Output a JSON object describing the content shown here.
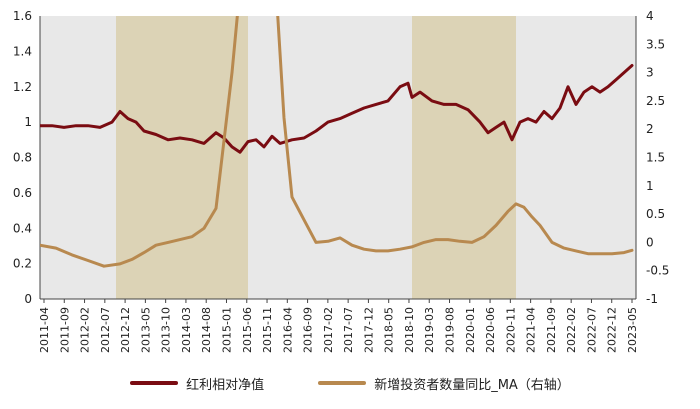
{
  "chart_data": {
    "type": "line",
    "x_ticks": [
      "2011-04",
      "2011-09",
      "2012-02",
      "2012-07",
      "2012-12",
      "2013-05",
      "2013-10",
      "2014-03",
      "2014-08",
      "2015-01",
      "2015-06",
      "2015-11",
      "2016-04",
      "2016-09",
      "2017-02",
      "2017-07",
      "2017-12",
      "2018-05",
      "2018-10",
      "2019-03",
      "2019-08",
      "2020-01",
      "2020-06",
      "2020-11",
      "2021-04",
      "2021-09",
      "2022-02",
      "2022-07",
      "2022-12",
      "2023-05"
    ],
    "y_left": {
      "ticks": [
        "0",
        "0.2",
        "0.4",
        "0.6",
        "0.8",
        "1",
        "1.2",
        "1.4",
        "1.6"
      ],
      "min": 0,
      "max": 1.6
    },
    "y_right": {
      "ticks": [
        "-1",
        "-0.5",
        "0",
        "0.5",
        "1",
        "1.5",
        "2",
        "2.5",
        "3",
        "3.5",
        "4"
      ],
      "min": -1,
      "max": 4
    },
    "shaded_regions": [
      {
        "start": "2012-11",
        "end": "2015-08"
      },
      {
        "start": "2019-01",
        "end": "2021-03"
      }
    ],
    "series": [
      {
        "name": "红利相对净值",
        "axis": "left",
        "color": "#7a0c12",
        "points": [
          [
            "2011-04",
            0.98
          ],
          [
            "2011-07",
            0.98
          ],
          [
            "2011-10",
            0.97
          ],
          [
            "2012-01",
            0.98
          ],
          [
            "2012-04",
            0.98
          ],
          [
            "2012-07",
            0.97
          ],
          [
            "2012-10",
            1.0
          ],
          [
            "2012-12",
            1.06
          ],
          [
            "2013-02",
            1.02
          ],
          [
            "2013-04",
            1.0
          ],
          [
            "2013-06",
            0.95
          ],
          [
            "2013-09",
            0.93
          ],
          [
            "2013-12",
            0.9
          ],
          [
            "2014-03",
            0.91
          ],
          [
            "2014-06",
            0.9
          ],
          [
            "2014-09",
            0.88
          ],
          [
            "2014-12",
            0.94
          ],
          [
            "2015-02",
            0.91
          ],
          [
            "2015-04",
            0.86
          ],
          [
            "2015-06",
            0.83
          ],
          [
            "2015-08",
            0.89
          ],
          [
            "2015-10",
            0.9
          ],
          [
            "2015-12",
            0.86
          ],
          [
            "2016-02",
            0.92
          ],
          [
            "2016-04",
            0.88
          ],
          [
            "2016-07",
            0.9
          ],
          [
            "2016-10",
            0.91
          ],
          [
            "2017-01",
            0.95
          ],
          [
            "2017-04",
            1.0
          ],
          [
            "2017-07",
            1.02
          ],
          [
            "2017-10",
            1.05
          ],
          [
            "2018-01",
            1.08
          ],
          [
            "2018-04",
            1.1
          ],
          [
            "2018-07",
            1.12
          ],
          [
            "2018-10",
            1.2
          ],
          [
            "2018-12",
            1.22
          ],
          [
            "2019-01",
            1.14
          ],
          [
            "2019-03",
            1.17
          ],
          [
            "2019-06",
            1.12
          ],
          [
            "2019-09",
            1.1
          ],
          [
            "2019-12",
            1.1
          ],
          [
            "2020-03",
            1.07
          ],
          [
            "2020-06",
            1.0
          ],
          [
            "2020-08",
            0.94
          ],
          [
            "2020-10",
            0.97
          ],
          [
            "2020-12",
            1.0
          ],
          [
            "2021-02",
            0.9
          ],
          [
            "2021-04",
            1.0
          ],
          [
            "2021-06",
            1.02
          ],
          [
            "2021-08",
            1.0
          ],
          [
            "2021-10",
            1.06
          ],
          [
            "2021-12",
            1.02
          ],
          [
            "2022-02",
            1.08
          ],
          [
            "2022-04",
            1.2
          ],
          [
            "2022-06",
            1.1
          ],
          [
            "2022-08",
            1.17
          ],
          [
            "2022-10",
            1.2
          ],
          [
            "2022-12",
            1.17
          ],
          [
            "2023-02",
            1.2
          ],
          [
            "2023-04",
            1.24
          ],
          [
            "2023-06",
            1.28
          ],
          [
            "2023-08",
            1.32
          ]
        ]
      },
      {
        "name": "新增投资者数量同比_MA（右轴）",
        "axis": "right",
        "color": "#b8894f",
        "points": [
          [
            "2011-04",
            -0.05
          ],
          [
            "2011-08",
            -0.1
          ],
          [
            "2011-12",
            -0.22
          ],
          [
            "2012-04",
            -0.32
          ],
          [
            "2012-08",
            -0.42
          ],
          [
            "2012-12",
            -0.38
          ],
          [
            "2013-03",
            -0.3
          ],
          [
            "2013-06",
            -0.18
          ],
          [
            "2013-09",
            -0.05
          ],
          [
            "2013-12",
            0.0
          ],
          [
            "2014-03",
            0.05
          ],
          [
            "2014-06",
            0.1
          ],
          [
            "2014-09",
            0.25
          ],
          [
            "2014-12",
            0.6
          ],
          [
            "2015-02",
            1.8
          ],
          [
            "2015-04",
            3.0
          ],
          [
            "2015-06",
            4.5
          ],
          [
            "2016-03",
            4.5
          ],
          [
            "2016-05",
            2.2
          ],
          [
            "2016-07",
            0.8
          ],
          [
            "2016-10",
            0.4
          ],
          [
            "2017-01",
            0.0
          ],
          [
            "2017-04",
            0.02
          ],
          [
            "2017-07",
            0.08
          ],
          [
            "2017-10",
            -0.05
          ],
          [
            "2018-01",
            -0.12
          ],
          [
            "2018-04",
            -0.15
          ],
          [
            "2018-07",
            -0.15
          ],
          [
            "2018-10",
            -0.12
          ],
          [
            "2019-01",
            -0.08
          ],
          [
            "2019-04",
            0.0
          ],
          [
            "2019-07",
            0.05
          ],
          [
            "2019-10",
            0.05
          ],
          [
            "2020-01",
            0.02
          ],
          [
            "2020-04",
            0.0
          ],
          [
            "2020-07",
            0.1
          ],
          [
            "2020-10",
            0.3
          ],
          [
            "2021-01",
            0.55
          ],
          [
            "2021-03",
            0.68
          ],
          [
            "2021-05",
            0.62
          ],
          [
            "2021-07",
            0.45
          ],
          [
            "2021-09",
            0.3
          ],
          [
            "2021-12",
            0.0
          ],
          [
            "2022-03",
            -0.1
          ],
          [
            "2022-06",
            -0.15
          ],
          [
            "2022-09",
            -0.2
          ],
          [
            "2022-12",
            -0.2
          ],
          [
            "2023-03",
            -0.2
          ],
          [
            "2023-06",
            -0.18
          ],
          [
            "2023-08",
            -0.14
          ]
        ]
      }
    ],
    "legend_position": "bottom",
    "grid": false
  }
}
